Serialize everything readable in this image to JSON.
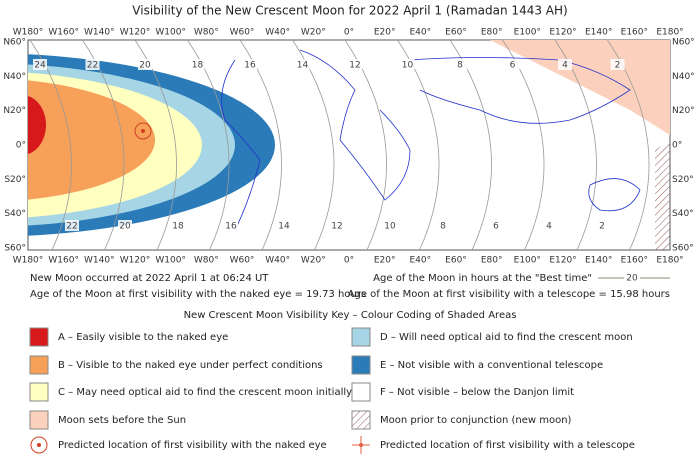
{
  "title": "Visibility of the New Crescent Moon for 2022 April 1 (Ramadan 1443 AH)",
  "map": {
    "lon_labels": [
      "W180°",
      "W160°",
      "W140°",
      "W120°",
      "W100°",
      "W80°",
      "W60°",
      "W40°",
      "W20°",
      "0°",
      "E20°",
      "E40°",
      "E60°",
      "E80°",
      "E100°",
      "E120°",
      "E140°",
      "E160°",
      "E180°"
    ],
    "lat_labels": [
      "N60°",
      "N40°",
      "N20°",
      "0°",
      "S20°",
      "S40°",
      "S60°"
    ],
    "hour_labels_top": [
      "24",
      "22",
      "20",
      "18",
      "16",
      "14",
      "12",
      "10",
      "8",
      "6",
      "4",
      "2"
    ],
    "hour_labels_bottom": [
      "22",
      "20",
      "18",
      "16",
      "14",
      "12",
      "10",
      "8",
      "6",
      "4",
      "2"
    ]
  },
  "info": {
    "new_moon": "New Moon occurred at 2022 April 1 at 06:24 UT",
    "naked_eye_age": "Age of the Moon at first visibility with the naked eye = 19.73 hours",
    "best_time": "Age of the Moon in hours at the \"Best time\"",
    "best_time_sample": "20",
    "telescope_age": "Age of the Moon at first visibility with a telescope = 15.98 hours"
  },
  "key": {
    "title": "New Crescent Moon Visibility Key – Colour Coding of Shaded Areas",
    "items": [
      "A – Easily visible to the naked eye",
      "B – Visible to the naked eye under perfect conditions",
      "C – May need optical aid to find the crescent moon initially",
      "Moon sets before the Sun",
      "Predicted location of first visibility with the naked eye",
      "D – Will need optical aid to find the crescent moon",
      "E – Not visible with a conventional telescope",
      "F – Not visible – below the Danjon limit",
      "Moon prior to conjunction (new moon)",
      "Predicted location of first visibility with a telescope"
    ]
  }
}
